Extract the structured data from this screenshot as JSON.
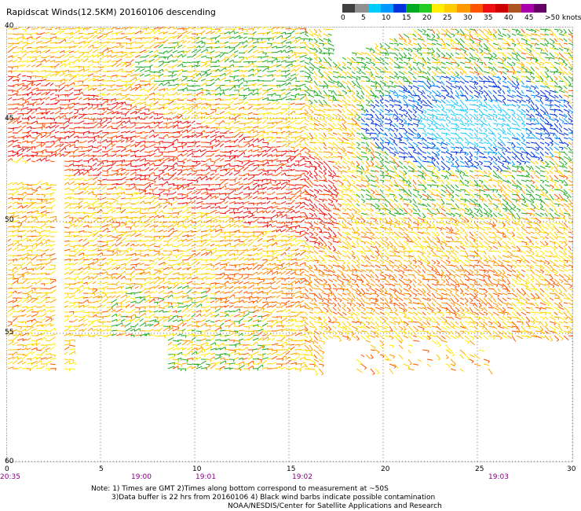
{
  "title": "Rapidscat Winds(12.5KM) 20160106 descending",
  "scale": {
    "colors": [
      "#404040",
      "#909090",
      "#00ccff",
      "#0099ff",
      "#0033dd",
      "#00aa22",
      "#22cc22",
      "#ffee00",
      "#ffcc00",
      "#ff9900",
      "#ff5500",
      "#ee1111",
      "#cc0000",
      "#aa5522",
      "#aa00aa",
      "#660066"
    ],
    "labels": [
      "0",
      "5",
      "10",
      "15",
      "20",
      "25",
      "30",
      "35",
      "40",
      "45",
      ">50 knots"
    ]
  },
  "y_axis": {
    "labels": [
      "40",
      "45",
      "50",
      "55",
      "60"
    ]
  },
  "x_axis": {
    "labels": [
      "0",
      "5",
      "10",
      "15",
      "20",
      "25",
      "30"
    ]
  },
  "time_labels": [
    "20:35",
    "19:00",
    "19:01",
    "19:02",
    "19:03"
  ],
  "notes": [
    "Note: 1) Times are GMT 2)Times along bottom correspond to measurement at ~50S",
    "3)Data buffer is 22 hrs from 20160106 4) Black wind barbs indicate possible contamination",
    "NOAA/NESDIS/Center for Satellite Applications and Research"
  ]
}
